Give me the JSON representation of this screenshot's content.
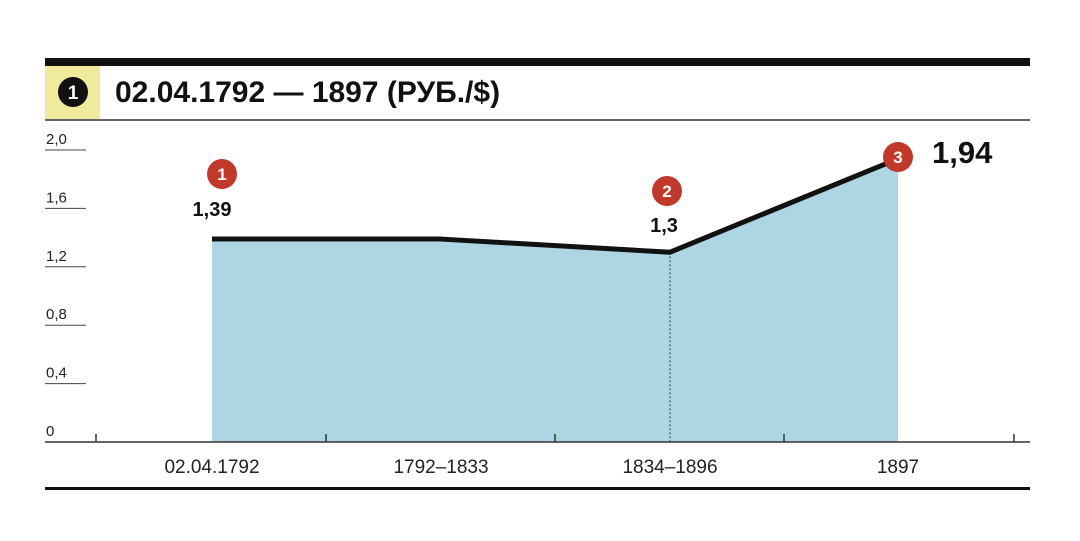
{
  "header": {
    "number": "1",
    "title": "02.04.1792 — 1897 (РУБ./$)"
  },
  "colors": {
    "fill": "#aed5e3",
    "line": "#111111",
    "badge": "#c0392b",
    "header_box": "#f0ea9c"
  },
  "chart_data": {
    "type": "area",
    "title": "02.04.1792 — 1897 (РУБ./$)",
    "categories": [
      "02.04.1792",
      "1792–1833",
      "1834–1896",
      "1897"
    ],
    "values": [
      1.39,
      1.39,
      1.3,
      1.94
    ],
    "data_labels": [
      "1,39",
      "",
      "1,3",
      "1,94"
    ],
    "markers": [
      {
        "index": 0,
        "label": "1"
      },
      {
        "index": 2,
        "label": "2"
      },
      {
        "index": 3,
        "label": "3"
      }
    ],
    "yticks": [
      "0",
      "0,4",
      "0,8",
      "1,2",
      "1,6",
      "2,0"
    ],
    "ylim": [
      0,
      2.0
    ],
    "grid": false
  }
}
